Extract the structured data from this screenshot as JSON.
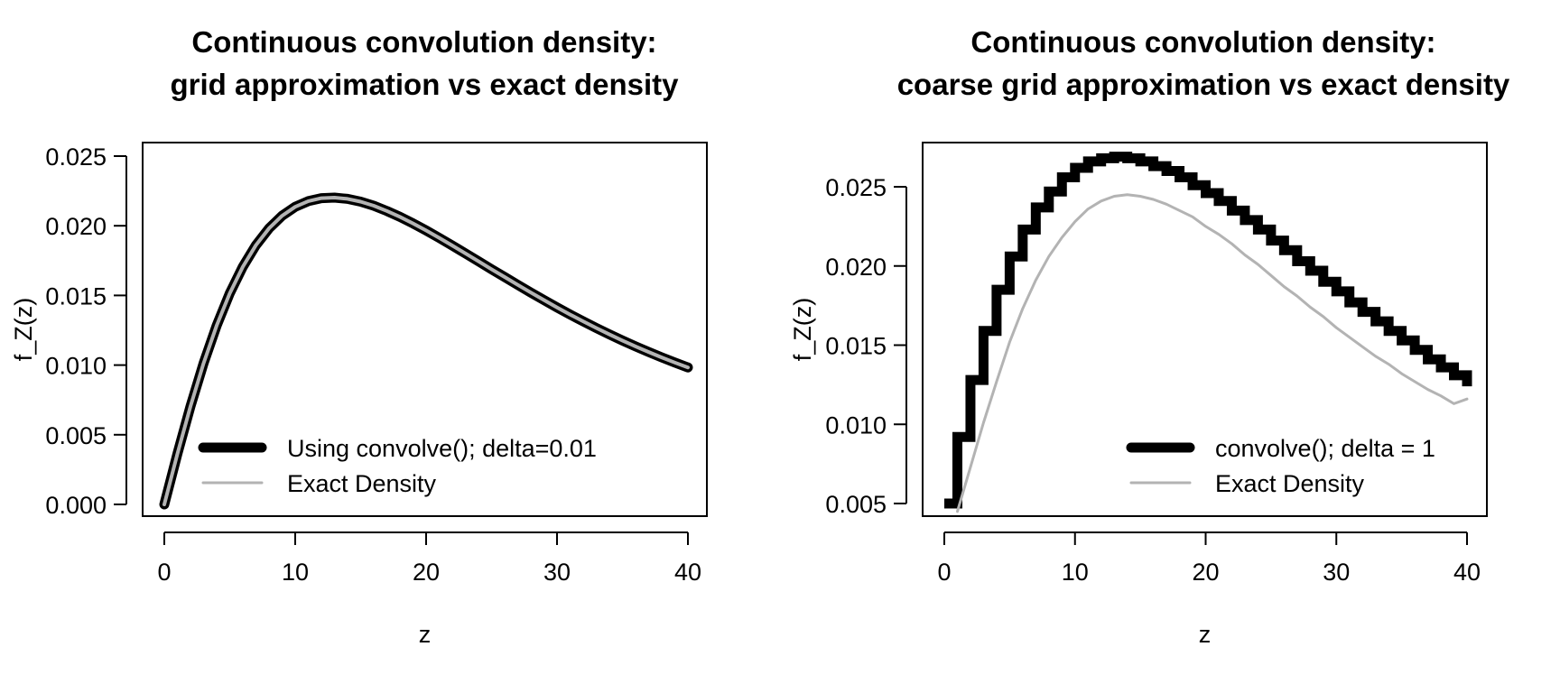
{
  "chart_data": [
    {
      "type": "line",
      "title": "Continuous convolution density:\ngrid approximation vs exact density",
      "xlabel": "z",
      "ylabel": "f_Z(z)",
      "xlim": [
        0,
        40
      ],
      "ylim": [
        0,
        0.025
      ],
      "xticks": [
        "0",
        "10",
        "20",
        "30",
        "40"
      ],
      "yticks": [
        "0.000",
        "0.005",
        "0.010",
        "0.015",
        "0.020",
        "0.025"
      ],
      "legend_position": "bottom-right",
      "grid": false,
      "series": [
        {
          "name": "Using convolve(); delta=0.01",
          "color": "#000000",
          "style": "thick",
          "x": [
            0,
            1,
            2,
            3,
            4,
            5,
            6,
            7,
            8,
            9,
            10,
            11,
            12,
            13,
            14,
            15,
            16,
            17,
            18,
            19,
            20,
            21,
            22,
            23,
            24,
            25,
            26,
            27,
            28,
            29,
            30,
            31,
            32,
            33,
            34,
            35,
            36,
            37,
            38,
            39,
            40
          ],
          "y": [
            0.0,
            0.00363,
            0.00704,
            0.01013,
            0.01284,
            0.01515,
            0.01706,
            0.01861,
            0.01981,
            0.02072,
            0.02136,
            0.02177,
            0.02198,
            0.02202,
            0.02193,
            0.02173,
            0.02144,
            0.02106,
            0.02064,
            0.02017,
            0.01966,
            0.01913,
            0.01858,
            0.01802,
            0.01745,
            0.01688,
            0.01632,
            0.01576,
            0.01521,
            0.01467,
            0.01414,
            0.01363,
            0.01314,
            0.01266,
            0.0122,
            0.01176,
            0.01134,
            0.01094,
            0.01055,
            0.01018,
            0.00983
          ]
        },
        {
          "name": "Exact Density",
          "color": "#b3b3b3",
          "style": "thin",
          "x": [
            0,
            1,
            2,
            3,
            4,
            5,
            6,
            7,
            8,
            9,
            10,
            11,
            12,
            13,
            14,
            15,
            16,
            17,
            18,
            19,
            20,
            21,
            22,
            23,
            24,
            25,
            26,
            27,
            28,
            29,
            30,
            31,
            32,
            33,
            34,
            35,
            36,
            37,
            38,
            39,
            40
          ],
          "y": [
            0.0,
            0.00363,
            0.00704,
            0.01013,
            0.01284,
            0.01515,
            0.01706,
            0.01861,
            0.01981,
            0.02072,
            0.02136,
            0.02177,
            0.02198,
            0.02202,
            0.02193,
            0.02173,
            0.02144,
            0.02106,
            0.02064,
            0.02017,
            0.01966,
            0.01913,
            0.01858,
            0.01802,
            0.01745,
            0.01688,
            0.01632,
            0.01576,
            0.01521,
            0.01467,
            0.01414,
            0.01363,
            0.01314,
            0.01266,
            0.0122,
            0.01176,
            0.01134,
            0.01094,
            0.01055,
            0.01018,
            0.00983
          ]
        }
      ]
    },
    {
      "type": "line",
      "title": "Continuous convolution density:\ncoarse grid approximation vs exact density",
      "xlabel": "z",
      "ylabel": "f_Z(z)",
      "xlim": [
        0,
        40
      ],
      "ylim": [
        0.005,
        0.027
      ],
      "xticks": [
        "0",
        "10",
        "20",
        "30",
        "40"
      ],
      "yticks": [
        "0.005",
        "0.010",
        "0.015",
        "0.020",
        "0.025"
      ],
      "legend_position": "bottom-right",
      "grid": false,
      "series": [
        {
          "name": "convolve(); delta = 1",
          "color": "#000000",
          "style": "thick-step",
          "x": [
            0,
            1,
            2,
            3,
            4,
            5,
            6,
            7,
            8,
            9,
            10,
            11,
            12,
            13,
            14,
            15,
            16,
            17,
            18,
            19,
            20,
            21,
            22,
            23,
            24,
            25,
            26,
            27,
            28,
            29,
            30,
            31,
            32,
            33,
            34,
            35,
            36,
            37,
            38,
            39,
            40
          ],
          "y": [
            0.005,
            0.0092,
            0.0128,
            0.0159,
            0.0185,
            0.0206,
            0.0223,
            0.0237,
            0.0247,
            0.0256,
            0.0262,
            0.0266,
            0.0268,
            0.0269,
            0.0268,
            0.0266,
            0.0263,
            0.026,
            0.0256,
            0.0251,
            0.0246,
            0.0241,
            0.0235,
            0.0229,
            0.0223,
            0.0216,
            0.021,
            0.0203,
            0.0197,
            0.019,
            0.0184,
            0.0177,
            0.0171,
            0.0165,
            0.0159,
            0.0153,
            0.0147,
            0.0141,
            0.0136,
            0.0131,
            0.0124
          ]
        },
        {
          "name": "Exact Density",
          "color": "#b3b3b3",
          "style": "thin",
          "x": [
            1,
            2,
            3,
            4,
            5,
            6,
            7,
            8,
            9,
            10,
            11,
            12,
            13,
            14,
            15,
            16,
            17,
            18,
            19,
            20,
            21,
            22,
            23,
            24,
            25,
            26,
            27,
            28,
            29,
            30,
            31,
            32,
            33,
            34,
            35,
            36,
            37,
            38,
            39,
            40
          ],
          "y": [
            0.0045,
            0.0073,
            0.0101,
            0.0127,
            0.0152,
            0.0173,
            0.0191,
            0.0206,
            0.0218,
            0.0228,
            0.0236,
            0.0241,
            0.0244,
            0.0245,
            0.0244,
            0.0242,
            0.0239,
            0.0235,
            0.0231,
            0.0225,
            0.022,
            0.0214,
            0.0207,
            0.0201,
            0.0194,
            0.0187,
            0.0181,
            0.0174,
            0.0168,
            0.0161,
            0.0155,
            0.0149,
            0.0143,
            0.0138,
            0.0132,
            0.0127,
            0.0122,
            0.0118,
            0.0113,
            0.0116
          ]
        }
      ]
    }
  ]
}
